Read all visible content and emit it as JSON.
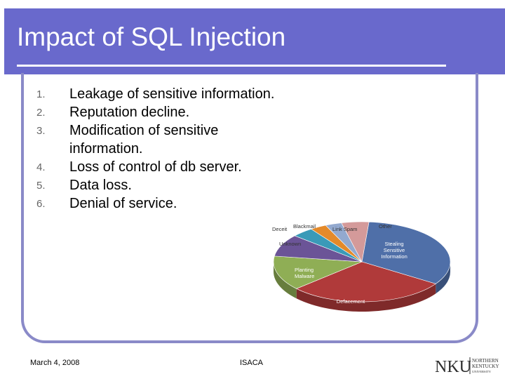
{
  "slide": {
    "title": "Impact of SQL Injection",
    "items": [
      {
        "num": "1.",
        "text": "Leakage of sensitive information."
      },
      {
        "num": "2.",
        "text": "Reputation decline."
      },
      {
        "num": "3.",
        "text": "Modification of sensitive information."
      },
      {
        "num": "4.",
        "text": "Loss of control of db server."
      },
      {
        "num": "5.",
        "text": "Data loss."
      },
      {
        "num": "6.",
        "text": "Denial of service."
      }
    ]
  },
  "footer": {
    "date": "March 4, 2008",
    "org": "ISACA"
  },
  "logo": {
    "mark": "NKU",
    "line1": "NORTHERN",
    "line2": "KENTUCKY",
    "line3": "UNIVERSITY"
  },
  "chart_data": {
    "type": "pie",
    "title": "",
    "slices": [
      {
        "label": "Stealing Sensitive Information",
        "value": 33,
        "color": "#4f6fa8"
      },
      {
        "label": "Defacement",
        "value": 29,
        "color": "#b03a3a"
      },
      {
        "label": "Planting Malware",
        "value": 14,
        "color": "#8fae55"
      },
      {
        "label": "Unknown",
        "value": 9,
        "color": "#6b5497"
      },
      {
        "label": "Deceit",
        "value": 4,
        "color": "#3a9ab8"
      },
      {
        "label": "Blackmail",
        "value": 3,
        "color": "#e48a2a"
      },
      {
        "label": "Link Spam",
        "value": 3,
        "color": "#93a9cf"
      },
      {
        "label": "Other",
        "value": 5,
        "color": "#d49a9a"
      }
    ]
  }
}
